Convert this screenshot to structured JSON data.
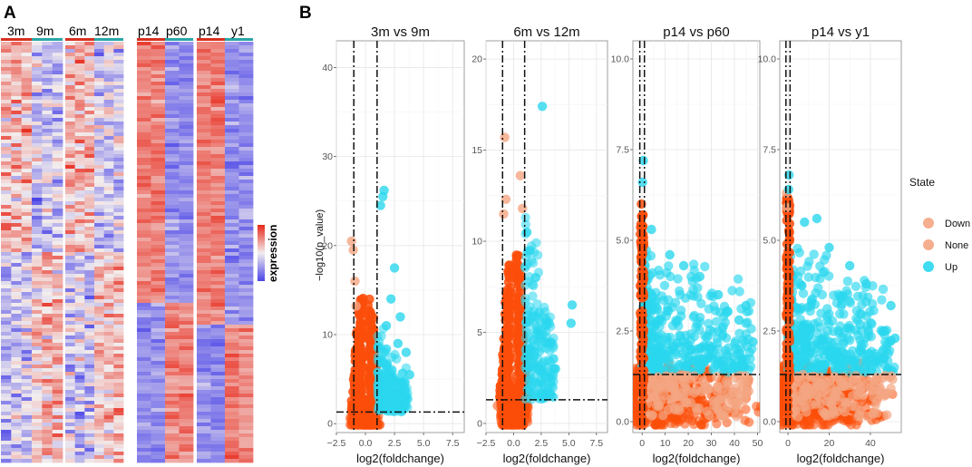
{
  "panel_labels": {
    "a": "A",
    "b": "B"
  },
  "colors": {
    "down": "#f4a582",
    "none": "#fc4e0a",
    "up": "#2ad7ee",
    "hm_high": "#e8281a",
    "hm_mid": "#f2eded",
    "hm_low": "#4b45e8",
    "bar_group1": "#d7301f",
    "bar_group2": "#2aa6a6"
  },
  "heatmap": {
    "groups": [
      {
        "labels": [
          "3m",
          "9m"
        ],
        "columns": 6
      },
      {
        "labels": [
          "6m",
          "12m"
        ],
        "columns": 6
      },
      {
        "labels": [
          "p14",
          "p60"
        ],
        "columns": 4
      },
      {
        "labels": [
          "p14",
          "y1"
        ],
        "columns": 4
      }
    ],
    "colorbar_label": "expression"
  },
  "y_axis_label": "−log10(p_value)",
  "legend": {
    "title": "State",
    "items": [
      "Down",
      "None",
      "Up"
    ]
  },
  "chart_data": [
    {
      "type": "scatter",
      "title": "3m vs 9m",
      "xlabel": "log2(foldchange)",
      "ylabel": "−log10(p_value)",
      "xlim": [
        -2.5,
        8.5
      ],
      "ylim": [
        -1,
        43
      ],
      "xticks": [
        -2.5,
        0.0,
        2.5,
        5.0,
        7.5
      ],
      "xtick_labels": [
        "−2.5",
        "0.0",
        "2.5",
        "5.0",
        "7.5"
      ],
      "yticks": [
        0,
        10,
        20,
        30,
        40
      ],
      "ytick_labels": [
        "0",
        "10",
        "20",
        "30",
        "40"
      ],
      "vlines": [
        -1,
        1
      ],
      "hline": 1.3,
      "series": [
        {
          "name": "Down",
          "points": [
            [
              -1.2,
              20.5
            ],
            [
              -1.05,
              19.5
            ],
            [
              -0.9,
              16
            ],
            [
              -0.8,
              13.2
            ]
          ]
        },
        {
          "name": "Up",
          "points": [
            [
              1.6,
              26.2
            ],
            [
              1.3,
              24.5
            ],
            [
              1.5,
              25.5
            ],
            [
              2.5,
              17.5
            ],
            [
              3.0,
              12
            ],
            [
              3.5,
              8
            ],
            [
              3.8,
              5.5
            ],
            [
              2.8,
              9
            ],
            [
              2.2,
              14
            ],
            [
              1.8,
              11
            ]
          ]
        }
      ]
    },
    {
      "type": "scatter",
      "title": "6m vs 12m",
      "xlabel": "log2(foldchange)",
      "ylabel": "−log10(p_value)",
      "xlim": [
        -2.5,
        8.5
      ],
      "ylim": [
        -0.5,
        21
      ],
      "xticks": [
        -2.5,
        0.0,
        2.5,
        5.0,
        7.5
      ],
      "xtick_labels": [
        "−2.5",
        "0.0",
        "2.5",
        "5.0",
        "7.5"
      ],
      "yticks": [
        0,
        5,
        10,
        15,
        20
      ],
      "ytick_labels": [
        "0",
        "5",
        "10",
        "15",
        "20"
      ],
      "vlines": [
        -1,
        1
      ],
      "hline": 1.3,
      "series": [
        {
          "name": "Down",
          "points": [
            [
              -0.8,
              15.7
            ],
            [
              -0.7,
              12.3
            ],
            [
              -0.9,
              11.5
            ],
            [
              0.6,
              13.6
            ],
            [
              0.8,
              11.8
            ]
          ]
        },
        {
          "name": "Up",
          "points": [
            [
              2.6,
              17.4
            ],
            [
              5.3,
              6.5
            ],
            [
              5.2,
              5.5
            ],
            [
              3.8,
              3.0
            ],
            [
              2.0,
              8.0
            ],
            [
              1.5,
              9.5
            ],
            [
              1.2,
              10.5
            ]
          ]
        }
      ]
    },
    {
      "type": "scatter",
      "title": "p14 vs p60",
      "xlabel": "log2(foldchange)",
      "ylabel": "−log10(p_value)",
      "xlim": [
        -4,
        51
      ],
      "ylim": [
        -0.3,
        10.5
      ],
      "xticks": [
        0,
        10,
        20,
        30,
        40,
        50
      ],
      "xtick_labels": [
        "0",
        "10",
        "20",
        "30",
        "40",
        "50"
      ],
      "yticks": [
        0.0,
        2.5,
        5.0,
        7.5,
        10.0
      ],
      "ytick_labels": [
        "0.0",
        "2.5",
        "5.0",
        "7.5",
        "10.0"
      ],
      "vlines": [
        -1,
        1
      ],
      "hline": 1.3,
      "series": [
        {
          "name": "Up",
          "points": [
            [
              0.5,
              7.2
            ],
            [
              0.2,
              6.6
            ],
            [
              4,
              5.3
            ],
            [
              12,
              4.6
            ],
            [
              18,
              4.3
            ],
            [
              25,
              4.0
            ],
            [
              33,
              3.5
            ],
            [
              45,
              3.2
            ],
            [
              42,
              2.8
            ],
            [
              48,
              2.2
            ]
          ]
        }
      ]
    },
    {
      "type": "scatter",
      "title": "p14 vs y1",
      "xlabel": "log2(foldchange)",
      "ylabel": "−log10(p_value)",
      "xlim": [
        -4,
        55
      ],
      "ylim": [
        -0.3,
        10.5
      ],
      "xticks": [
        0,
        20,
        40
      ],
      "xtick_labels": [
        "0",
        "20",
        "40"
      ],
      "yticks": [
        0.0,
        2.5,
        5.0,
        7.5,
        10.0
      ],
      "ytick_labels": [
        "0.0",
        "2.5",
        "5.0",
        "7.5",
        "10.0"
      ],
      "vlines": [
        -1,
        1
      ],
      "hline": 1.3,
      "series": [
        {
          "name": "Down",
          "points": [
            [
              -0.8,
              6.3
            ],
            [
              -0.6,
              5.9
            ]
          ]
        },
        {
          "name": "Up",
          "points": [
            [
              0.5,
              6.8
            ],
            [
              0.3,
              6.4
            ],
            [
              8,
              5.5
            ],
            [
              14,
              5.6
            ],
            [
              20,
              4.8
            ],
            [
              30,
              4.3
            ],
            [
              38,
              3.8
            ],
            [
              50,
              3.2
            ],
            [
              47,
              2.5
            ],
            [
              52,
              2.3
            ]
          ]
        }
      ]
    }
  ]
}
